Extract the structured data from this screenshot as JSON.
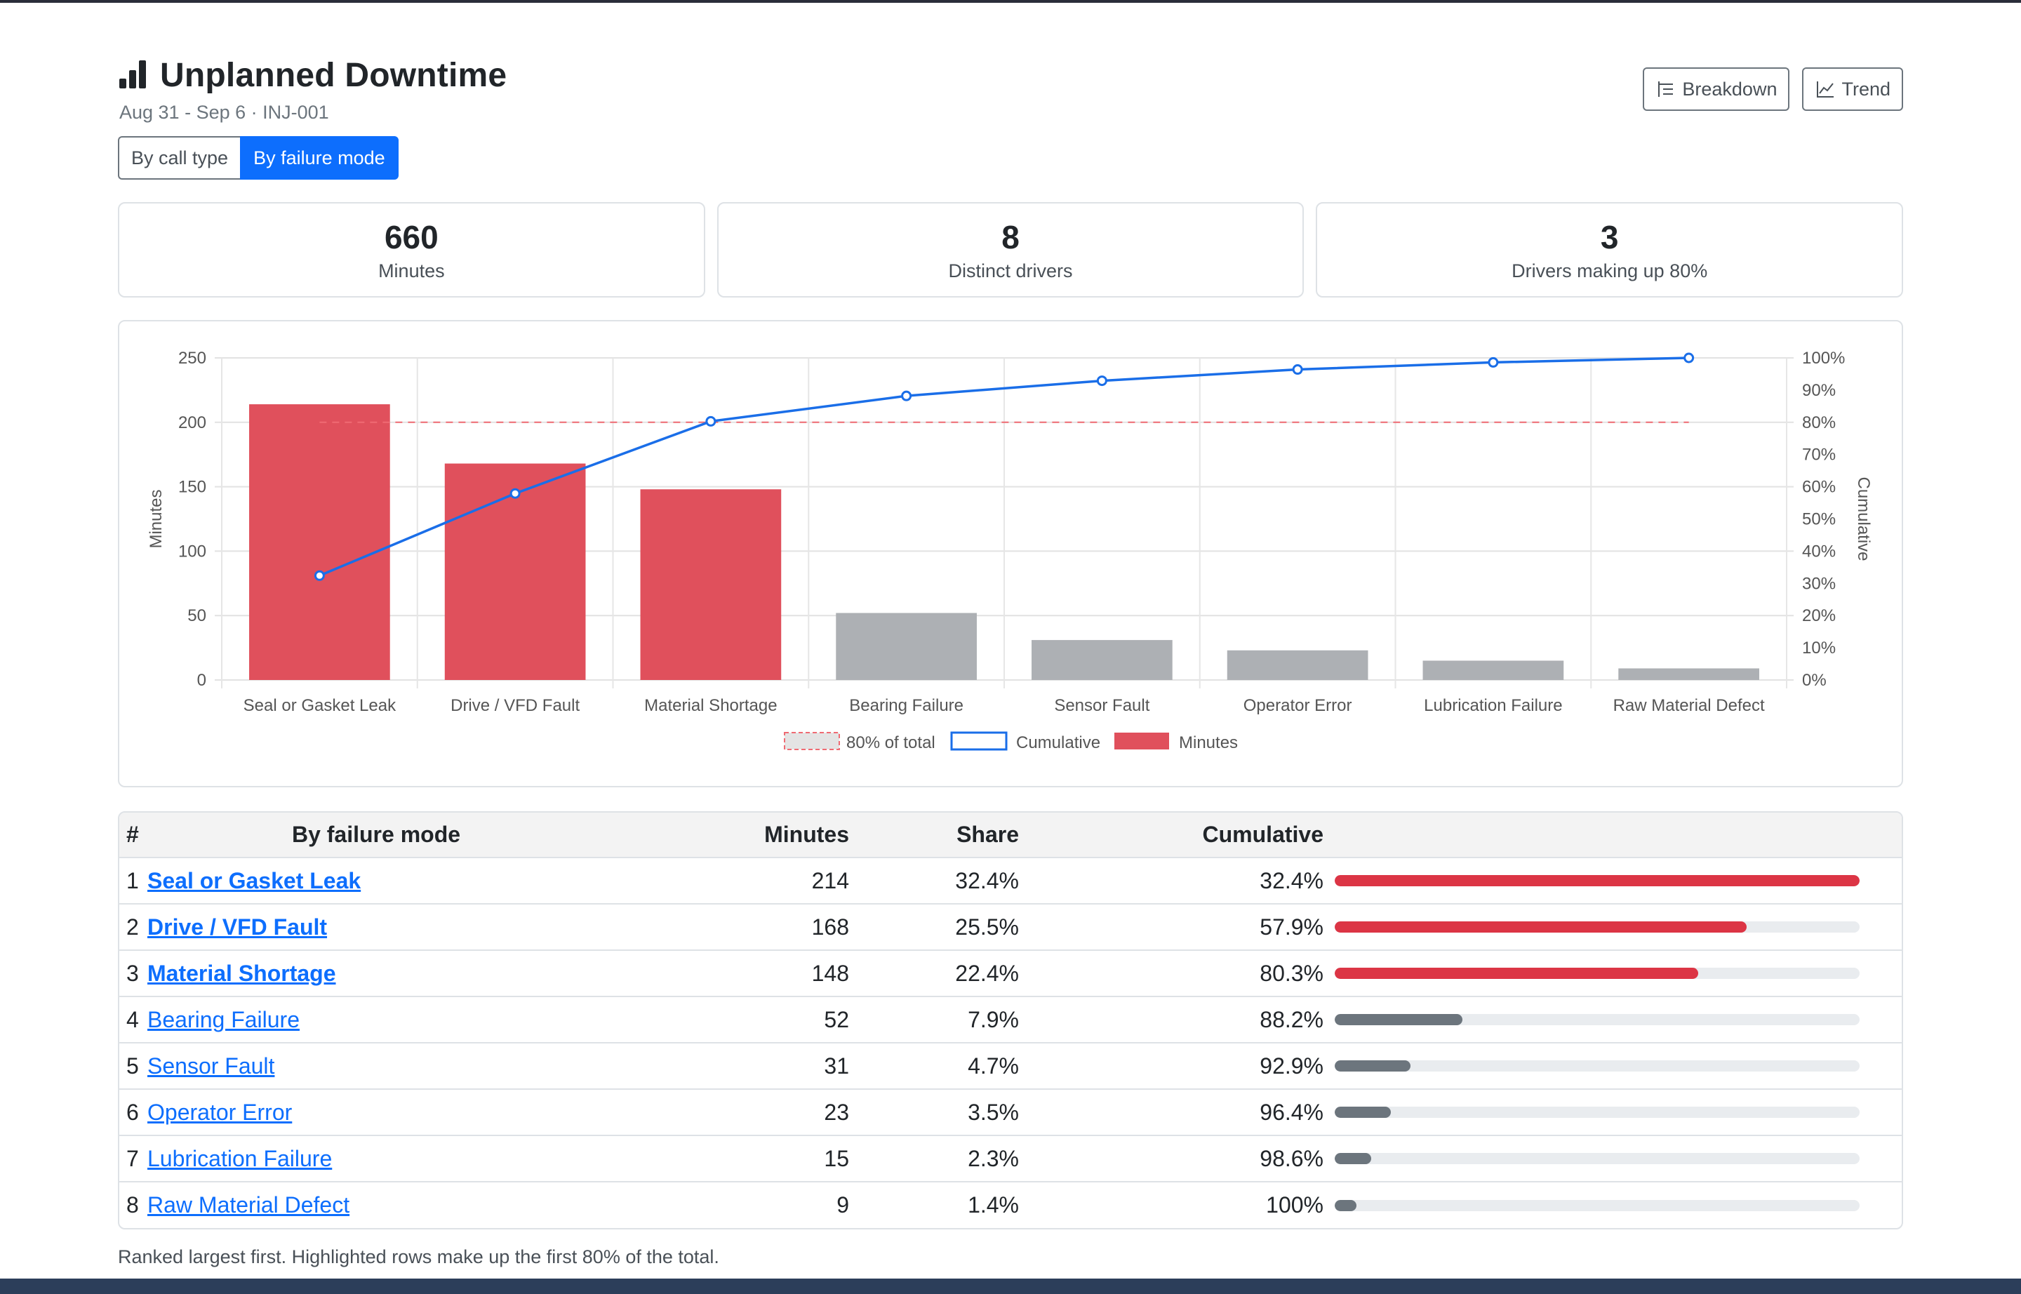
{
  "header": {
    "title": "Unplanned Downtime",
    "subtitle": "Aug 31 - Sep 6 · INJ-001",
    "title_icon": "bar-chart-icon"
  },
  "segmented": {
    "option_1": "By call type",
    "option_2": "By failure mode",
    "selected": "By failure mode"
  },
  "toolbar": {
    "breakdown_label": "Breakdown",
    "breakdown_icon": "list-tree-icon",
    "trend_label": "Trend",
    "trend_icon": "line-chart-icon"
  },
  "kpis": [
    {
      "value": "660",
      "label": "Minutes"
    },
    {
      "value": "8",
      "label": "Distinct drivers"
    },
    {
      "value": "3",
      "label": "Drivers making up 80%"
    }
  ],
  "colors": {
    "accent": "#0d6efd",
    "highlight_bar": "#dc3545",
    "other_bar": "#adb5bd",
    "cumulative_line": "#1a6ee8"
  },
  "chart_data": {
    "type": "bar",
    "categories": [
      "Seal or Gasket Leak",
      "Drive / VFD Fault",
      "Material Shortage",
      "Bearing Failure",
      "Sensor Fault",
      "Operator Error",
      "Lubrication Failure",
      "Raw Material Defect"
    ],
    "series": [
      {
        "name": "Minutes",
        "type": "bar",
        "axis": "left",
        "values": [
          214,
          168,
          148,
          52,
          31,
          23,
          15,
          9
        ]
      },
      {
        "name": "Cumulative",
        "type": "line",
        "axis": "right",
        "values": [
          32.4,
          57.9,
          80.3,
          88.2,
          92.9,
          96.4,
          98.6,
          100
        ]
      },
      {
        "name": "80% of total",
        "type": "threshold",
        "axis": "right",
        "values": [
          80,
          80,
          80,
          80,
          80,
          80,
          80,
          80
        ]
      }
    ],
    "highlighted_count": 3,
    "ylabel": "Minutes",
    "y2label": "Cumulative",
    "ylim": [
      0,
      250
    ],
    "yticks": [
      "0",
      "50",
      "100",
      "150",
      "200",
      "250"
    ],
    "y2lim": [
      0,
      100
    ],
    "y2ticks": [
      "0%",
      "10%",
      "20%",
      "30%",
      "40%",
      "50%",
      "60%",
      "70%",
      "80%",
      "90%",
      "100%"
    ],
    "legend": [
      "80% of total",
      "Cumulative",
      "Minutes"
    ],
    "legend_position": "bottom",
    "grid": true
  },
  "table": {
    "headers": {
      "rank": "#",
      "name": "By failure mode",
      "minutes": "Minutes",
      "share": "Share",
      "cumulative": "Cumulative"
    },
    "rows": [
      {
        "rank": "1",
        "name": "Seal or Gasket Leak",
        "minutes": "214",
        "share": "32.4%",
        "cumulative": "32.4%",
        "bar": 1.0,
        "highlight": true
      },
      {
        "rank": "2",
        "name": "Drive / VFD Fault",
        "minutes": "168",
        "share": "25.5%",
        "cumulative": "57.9%",
        "bar": 0.785,
        "highlight": true
      },
      {
        "rank": "3",
        "name": "Material Shortage",
        "minutes": "148",
        "share": "22.4%",
        "cumulative": "80.3%",
        "bar": 0.692,
        "highlight": true
      },
      {
        "rank": "4",
        "name": "Bearing Failure",
        "minutes": "52",
        "share": "7.9%",
        "cumulative": "88.2%",
        "bar": 0.243,
        "highlight": false
      },
      {
        "rank": "5",
        "name": "Sensor Fault",
        "minutes": "31",
        "share": "4.7%",
        "cumulative": "92.9%",
        "bar": 0.145,
        "highlight": false
      },
      {
        "rank": "6",
        "name": "Operator Error",
        "minutes": "23",
        "share": "3.5%",
        "cumulative": "96.4%",
        "bar": 0.107,
        "highlight": false
      },
      {
        "rank": "7",
        "name": "Lubrication Failure",
        "minutes": "15",
        "share": "2.3%",
        "cumulative": "98.6%",
        "bar": 0.07,
        "highlight": false
      },
      {
        "rank": "8",
        "name": "Raw Material Defect",
        "minutes": "9",
        "share": "1.4%",
        "cumulative": "100%",
        "bar": 0.042,
        "highlight": false
      }
    ]
  },
  "footnote": "Ranked largest first. Highlighted rows make up the first 80% of the total."
}
